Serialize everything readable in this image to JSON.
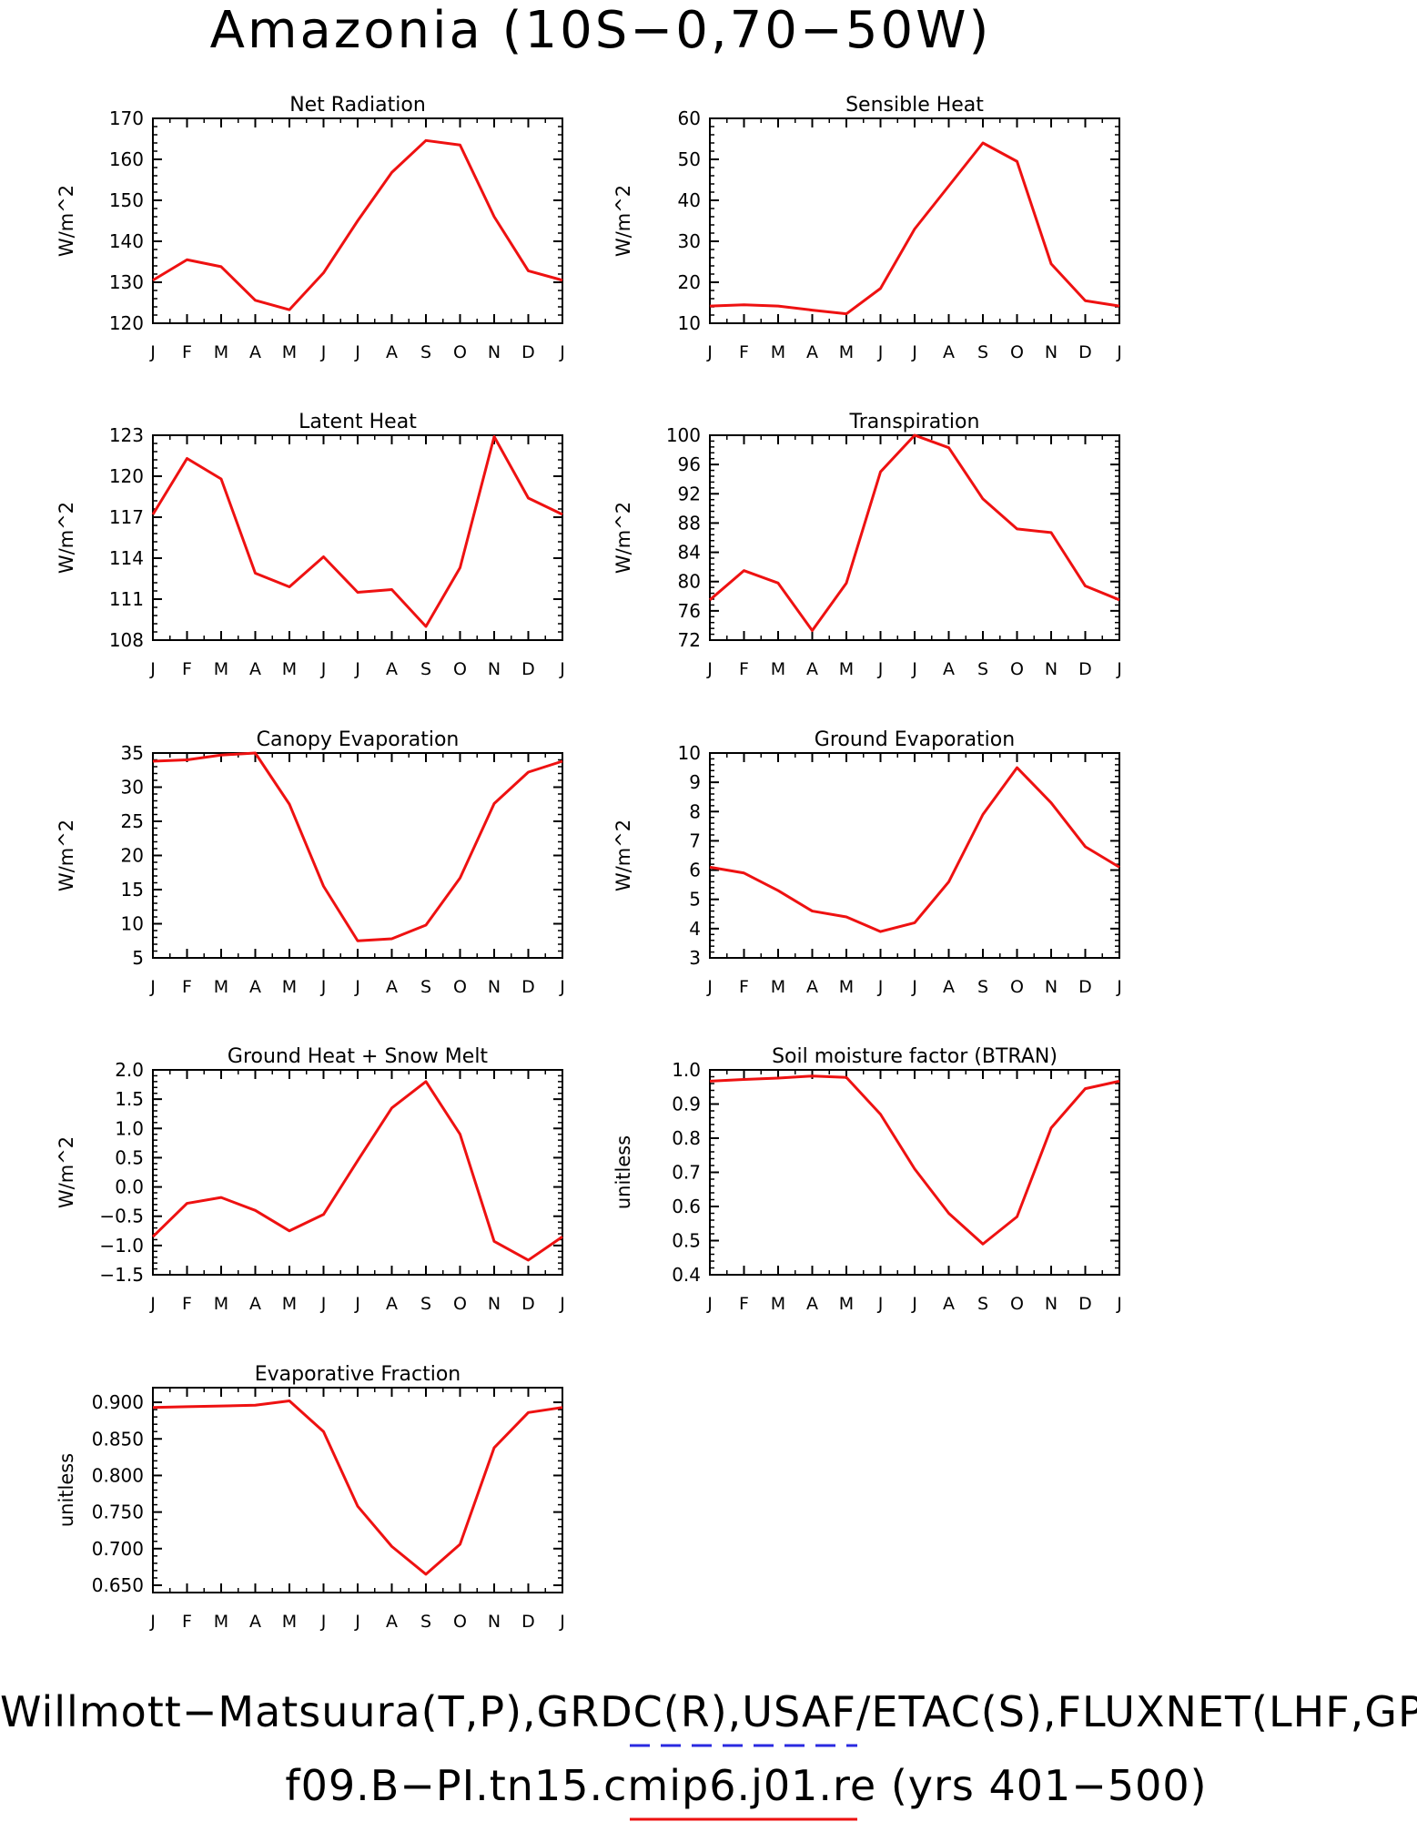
{
  "figure": {
    "title": "Amazonia (10S−0,70−50W)",
    "footer_line1": "Willmott−Matsuura(T,P),GRDC(R),USAF/ETAC(S),FLUXNET(LHF,GPP)",
    "footer_line2": "f09.B−PI.tn15.cmip6.j01.re (yrs 401−500)",
    "colors": {
      "obs_dashed": "#2a2ae0",
      "model_line": "#ee1111",
      "axes": "#000000"
    }
  },
  "chart_data": [
    {
      "type": "line",
      "title": "Net Radiation",
      "ylabel": "W/m^2",
      "categories": [
        "J",
        "F",
        "M",
        "A",
        "M",
        "J",
        "J",
        "A",
        "S",
        "O",
        "N",
        "D",
        "J"
      ],
      "ylim": [
        120,
        170
      ],
      "yticks": [
        120,
        130,
        140,
        150,
        160,
        170
      ],
      "ytick_labels": [
        "120",
        "130",
        "140",
        "150",
        "160",
        "170"
      ],
      "series": [
        {
          "values": [
            130.5,
            135.5,
            133.8,
            125.6,
            123.3,
            132.3,
            145.0,
            156.8,
            164.6,
            163.5,
            146.0,
            132.8,
            130.5
          ]
        }
      ]
    },
    {
      "type": "line",
      "title": "Sensible Heat",
      "ylabel": "W/m^2",
      "categories": [
        "J",
        "F",
        "M",
        "A",
        "M",
        "J",
        "J",
        "A",
        "S",
        "O",
        "N",
        "D",
        "J"
      ],
      "ylim": [
        10,
        60
      ],
      "yticks": [
        10,
        20,
        30,
        40,
        50,
        60
      ],
      "ytick_labels": [
        "10",
        "20",
        "30",
        "40",
        "50",
        "60"
      ],
      "series": [
        {
          "values": [
            14.2,
            14.5,
            14.2,
            13.2,
            12.3,
            18.5,
            33.0,
            43.5,
            54.0,
            49.5,
            24.5,
            15.5,
            14.2
          ]
        }
      ]
    },
    {
      "type": "line",
      "title": "Latent Heat",
      "ylabel": "W/m^2",
      "categories": [
        "J",
        "F",
        "M",
        "A",
        "M",
        "J",
        "J",
        "A",
        "S",
        "O",
        "N",
        "D",
        "J"
      ],
      "ylim": [
        108,
        123
      ],
      "yticks": [
        108,
        111,
        114,
        117,
        120,
        123
      ],
      "ytick_labels": [
        "108",
        "111",
        "114",
        "117",
        "120",
        "123"
      ],
      "series": [
        {
          "values": [
            117.2,
            121.3,
            119.8,
            112.9,
            111.9,
            114.1,
            111.5,
            111.7,
            109.0,
            113.3,
            122.9,
            118.4,
            117.2
          ]
        }
      ]
    },
    {
      "type": "line",
      "title": "Transpiration",
      "ylabel": "W/m^2",
      "categories": [
        "J",
        "F",
        "M",
        "A",
        "M",
        "J",
        "J",
        "A",
        "S",
        "O",
        "N",
        "D",
        "J"
      ],
      "ylim": [
        72,
        100
      ],
      "yticks": [
        72,
        76,
        80,
        84,
        88,
        92,
        96,
        100
      ],
      "ytick_labels": [
        "72",
        "76",
        "80",
        "84",
        "88",
        "92",
        "96",
        "100"
      ],
      "series": [
        {
          "values": [
            77.5,
            81.5,
            79.8,
            73.3,
            79.8,
            95.0,
            100.0,
            98.3,
            91.3,
            87.2,
            86.7,
            79.4,
            77.5
          ]
        }
      ]
    },
    {
      "type": "line",
      "title": "Canopy Evaporation",
      "ylabel": "W/m^2",
      "categories": [
        "J",
        "F",
        "M",
        "A",
        "M",
        "J",
        "J",
        "A",
        "S",
        "O",
        "N",
        "D",
        "J"
      ],
      "ylim": [
        5,
        35
      ],
      "yticks": [
        5,
        10,
        15,
        20,
        25,
        30,
        35
      ],
      "ytick_labels": [
        "5",
        "10",
        "15",
        "20",
        "25",
        "30",
        "35"
      ],
      "series": [
        {
          "values": [
            33.8,
            34.0,
            34.7,
            35.0,
            27.5,
            15.5,
            7.5,
            7.8,
            9.8,
            16.7,
            27.6,
            32.2,
            33.8
          ]
        }
      ]
    },
    {
      "type": "line",
      "title": "Ground Evaporation",
      "ylabel": "W/m^2",
      "categories": [
        "J",
        "F",
        "M",
        "A",
        "M",
        "J",
        "J",
        "A",
        "S",
        "O",
        "N",
        "D",
        "J"
      ],
      "ylim": [
        3,
        10
      ],
      "yticks": [
        3,
        4,
        5,
        6,
        7,
        8,
        9,
        10
      ],
      "ytick_labels": [
        "3",
        "4",
        "5",
        "6",
        "7",
        "8",
        "9",
        "10"
      ],
      "series": [
        {
          "values": [
            6.1,
            5.9,
            5.3,
            4.6,
            4.4,
            3.9,
            4.2,
            5.6,
            7.9,
            9.5,
            8.3,
            6.8,
            6.1
          ]
        }
      ]
    },
    {
      "type": "line",
      "title": "Ground Heat + Snow Melt",
      "ylabel": "W/m^2",
      "categories": [
        "J",
        "F",
        "M",
        "A",
        "M",
        "J",
        "J",
        "A",
        "S",
        "O",
        "N",
        "D",
        "J"
      ],
      "ylim": [
        -1.5,
        2.0
      ],
      "yticks": [
        -1.5,
        -1.0,
        -0.5,
        0.0,
        0.5,
        1.0,
        1.5,
        2.0
      ],
      "ytick_labels": [
        "−1.5",
        "−1.0",
        "−0.5",
        "0.0",
        "0.5",
        "1.0",
        "1.5",
        "2.0"
      ],
      "series": [
        {
          "values": [
            -0.85,
            -0.28,
            -0.18,
            -0.4,
            -0.75,
            -0.47,
            0.45,
            1.35,
            1.8,
            0.9,
            -0.93,
            -1.25,
            -0.85
          ]
        }
      ]
    },
    {
      "type": "line",
      "title": "Soil moisture factor (BTRAN)",
      "ylabel": "unitless",
      "categories": [
        "J",
        "F",
        "M",
        "A",
        "M",
        "J",
        "J",
        "A",
        "S",
        "O",
        "N",
        "D",
        "J"
      ],
      "ylim": [
        0.4,
        1.0
      ],
      "yticks": [
        0.4,
        0.5,
        0.6,
        0.7,
        0.8,
        0.9,
        1.0
      ],
      "ytick_labels": [
        "0.4",
        "0.5",
        "0.6",
        "0.7",
        "0.8",
        "0.9",
        "1.0"
      ],
      "series": [
        {
          "values": [
            0.967,
            0.972,
            0.976,
            0.982,
            0.978,
            0.87,
            0.71,
            0.58,
            0.49,
            0.57,
            0.83,
            0.945,
            0.967
          ]
        }
      ]
    },
    {
      "type": "line",
      "title": "Evaporative Fraction",
      "ylabel": "unitless",
      "categories": [
        "J",
        "F",
        "M",
        "A",
        "M",
        "J",
        "J",
        "A",
        "S",
        "O",
        "N",
        "D",
        "J"
      ],
      "ylim": [
        0.64,
        0.92
      ],
      "yticks": [
        0.65,
        0.7,
        0.75,
        0.8,
        0.85,
        0.9
      ],
      "ytick_labels": [
        "0.650",
        "0.700",
        "0.750",
        "0.800",
        "0.850",
        "0.900"
      ],
      "series": [
        {
          "values": [
            0.893,
            0.894,
            0.895,
            0.896,
            0.902,
            0.86,
            0.758,
            0.703,
            0.665,
            0.706,
            0.838,
            0.886,
            0.893
          ]
        }
      ]
    }
  ]
}
